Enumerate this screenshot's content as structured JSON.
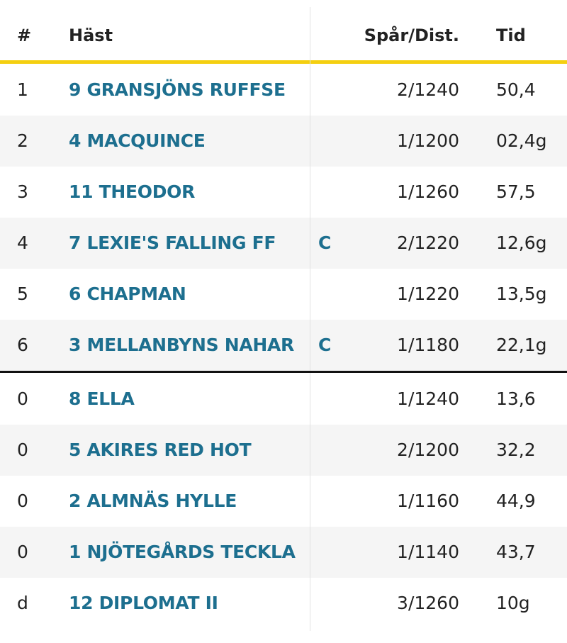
{
  "table": {
    "header": [
      "#",
      "Häst",
      "Spår/Dist.",
      "Tid"
    ],
    "groups": [
      [
        {
          "place": "1",
          "horse": "9 GRANSJÖNS RUFFSE",
          "dist": "2/1240",
          "time": "50,4"
        },
        {
          "place": "2",
          "horse": "4 MACQUINCE",
          "dist": "1/1200",
          "time": "02,4g"
        },
        {
          "place": "3",
          "horse": "11 THEODOR",
          "dist": "1/1260",
          "time": "57,5"
        },
        {
          "place": "4",
          "horse": "7 LEXIE'S FALLING FF",
          "mark": "C",
          "dist": "2/1220",
          "time": "12,6g"
        },
        {
          "place": "5",
          "horse": "6 CHAPMAN",
          "dist": "1/1220",
          "time": "13,5g"
        },
        {
          "place": "6",
          "horse": "3 MELLANBYNS NAHAR",
          "mark": "C",
          "dist": "1/1180",
          "time": "22,1g"
        }
      ],
      [
        {
          "place": "0",
          "horse": "8 ELLA",
          "dist": "1/1240",
          "time": "13,6"
        },
        {
          "place": "0",
          "horse": "5 AKIRES RED HOT",
          "dist": "2/1200",
          "time": "32,2"
        },
        {
          "place": "0",
          "horse": "2 ALMNÄS HYLLE",
          "dist": "1/1160",
          "time": "44,9"
        },
        {
          "place": "0",
          "horse": "1 NJÖTEGÅRDS TECKLA",
          "dist": "1/1140",
          "time": "43,7"
        },
        {
          "place": "d",
          "horse": "12 DIPLOMAT II",
          "dist": "3/1260",
          "time": "10g"
        }
      ]
    ]
  }
}
